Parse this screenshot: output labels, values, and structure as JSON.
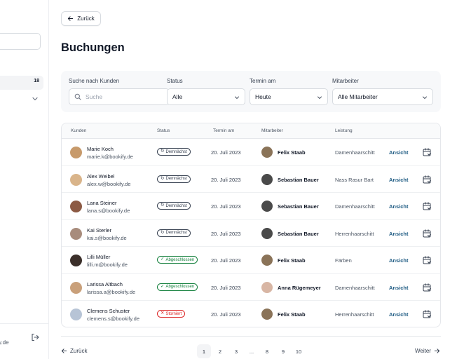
{
  "sidebar": {
    "active_badge": "18",
    "footer_email": "y.de"
  },
  "back_button": "Zurück",
  "title": "Buchungen",
  "filters": {
    "customer": {
      "label": "Suche nach Kunden",
      "placeholder": "Suche"
    },
    "status": {
      "label": "Status",
      "value": "Alle"
    },
    "date": {
      "label": "Termin am",
      "value": "Heute"
    },
    "employee": {
      "label": "Mitarbeiter",
      "value": "Alle Mitarbeiter"
    }
  },
  "table": {
    "headers": [
      "Kunden",
      "Status",
      "Termin am",
      "Mitarbeiter",
      "Leistung"
    ],
    "rows": [
      {
        "name": "Marie Koch",
        "email": "marie.k@bookify.de",
        "status": "Demnächst",
        "status_type": "upcoming",
        "date": "20. Juli 2023",
        "employee": "Felix Staab",
        "service": "Damenhaarschitt",
        "action": "Ansicht",
        "avatar_color": "#c79a6b",
        "emp_color": "#8a7358"
      },
      {
        "name": "Alex Weibel",
        "email": "alex.w@bookify.de",
        "status": "Demnächst",
        "status_type": "upcoming",
        "date": "20. Juli 2023",
        "employee": "Sebastian Bauer",
        "service": "Nass Rasur Bart",
        "action": "Ansicht",
        "avatar_color": "#d9b48a",
        "emp_color": "#4a4a4a"
      },
      {
        "name": "Lana Steiner",
        "email": "lana.s@bookify.de",
        "status": "Demnächst",
        "status_type": "upcoming",
        "date": "20. Juli 2023",
        "employee": "Sebastian Bauer",
        "service": "Damenhaarschitt",
        "action": "Ansicht",
        "avatar_color": "#8c5a44",
        "emp_color": "#4a4a4a"
      },
      {
        "name": "Kai Sterler",
        "email": "kai.s@bookify.de",
        "status": "Demnächst",
        "status_type": "upcoming",
        "date": "20. Juli 2023",
        "employee": "Sebastian Bauer",
        "service": "Herrenhaarschitt",
        "action": "Ansicht",
        "avatar_color": "#a88c7c",
        "emp_color": "#4a4a4a"
      },
      {
        "name": "Lilli Müller",
        "email": "lilli.m@bookify.de",
        "status": "Abgeschlossen",
        "status_type": "done",
        "date": "20. Juli 2023",
        "employee": "Felix Staab",
        "service": "Färben",
        "action": "Ansicht",
        "avatar_color": "#3b2f2a",
        "emp_color": "#8a7358"
      },
      {
        "name": "Larissa Altbach",
        "email": "larissa.a@bookify.de",
        "status": "Abgeschlossen",
        "status_type": "done",
        "date": "20. Juli 2023",
        "employee": "Anna Rügemeyer",
        "service": "Damenhaarschitt",
        "action": "Ansicht",
        "avatar_color": "#c9a07a",
        "emp_color": "#d8b6a4"
      },
      {
        "name": "Clemens Schuster",
        "email": "clemens.s@bookify.de",
        "status": "Storniert",
        "status_type": "cancelled",
        "date": "20. Juli 2023",
        "employee": "Felix Staab",
        "service": "Herrenhaarschitt",
        "action": "Ansicht",
        "avatar_color": "#b7c4d6",
        "emp_color": "#8a7358"
      }
    ]
  },
  "pagination": {
    "prev": "Zurück",
    "next": "Weiter",
    "pages": [
      "1",
      "2",
      "3",
      "...",
      "8",
      "9",
      "10"
    ],
    "active": "1"
  },
  "colors": {
    "upcoming": "#374151",
    "done": "#15803d",
    "cancelled": "#dc2626",
    "link": "#1d5a82"
  }
}
